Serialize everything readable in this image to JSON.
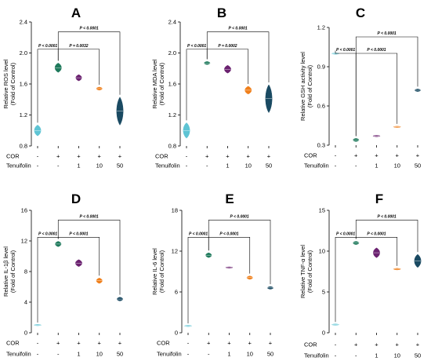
{
  "treatment_rows": {
    "row1_label": "COR",
    "row2_label": "Tenuifolin",
    "cor": [
      "-",
      "+",
      "+",
      "+",
      "+"
    ],
    "tenuifolin": [
      "-",
      "-",
      "1",
      "10",
      "50"
    ]
  },
  "colors": [
    "#5ec4d4",
    "#1f7a5c",
    "#6b2270",
    "#f07f1a",
    "#1a4a62"
  ],
  "chart_data": [
    {
      "panel": "A",
      "type": "violin",
      "ylabel_line1": "Relative ROS level",
      "ylabel_line2": "(Fold of Control)",
      "ylim": [
        0.8,
        2.4
      ],
      "yticks": [
        "0.8",
        "1.2",
        "1.6",
        "2.0",
        "2.4"
      ],
      "ytick_values": [
        0.8,
        1.2,
        1.6,
        2.0,
        2.4
      ],
      "values": [
        1.0,
        1.81,
        1.68,
        1.54,
        1.25
      ],
      "spread": [
        0.07,
        0.06,
        0.04,
        0.02,
        0.18
      ],
      "comparisons": [
        {
          "from": 0,
          "to": 1,
          "label": "P < 0.0001"
        },
        {
          "from": 1,
          "to": 3,
          "label": "P = 0.0032"
        },
        {
          "from": 1,
          "to": 4,
          "label": "P < 0.0001"
        }
      ]
    },
    {
      "panel": "B",
      "type": "violin",
      "ylabel_line1": "Relative MDA level",
      "ylabel_line2": "(Fold of Control)",
      "ylim": [
        0.8,
        2.4
      ],
      "yticks": [
        "0.8",
        "1.2",
        "1.6",
        "2.0",
        "2.4"
      ],
      "ytick_values": [
        0.8,
        1.2,
        1.6,
        2.0,
        2.4
      ],
      "values": [
        1.0,
        1.87,
        1.79,
        1.52,
        1.41
      ],
      "spread": [
        0.1,
        0.02,
        0.05,
        0.05,
        0.18
      ],
      "comparisons": [
        {
          "from": 0,
          "to": 1,
          "label": "P < 0.0001"
        },
        {
          "from": 1,
          "to": 3,
          "label": "P = 0.0002"
        },
        {
          "from": 1,
          "to": 4,
          "label": "P < 0.0001"
        }
      ]
    },
    {
      "panel": "C",
      "type": "violin",
      "ylabel_line1": "Relative GSH activity level",
      "ylabel_line2": "(Fold of Control)",
      "ylim": [
        0.3,
        1.2
      ],
      "yticks": [
        "0.3",
        "0.6",
        "0.9",
        "1.2"
      ],
      "ytick_values": [
        0.3,
        0.6,
        0.9,
        1.2
      ],
      "values": [
        1.0,
        0.34,
        0.37,
        0.44,
        0.72
      ],
      "spread": [
        0.005,
        0.012,
        0.005,
        0.005,
        0.01
      ],
      "comparisons": [
        {
          "from": 0,
          "to": 1,
          "label": "P < 0.0001"
        },
        {
          "from": 1,
          "to": 3,
          "label": "P < 0.0001"
        },
        {
          "from": 1,
          "to": 4,
          "label": "P < 0.0001"
        }
      ]
    },
    {
      "panel": "D",
      "type": "violin",
      "ylabel_line1": "Relative IL-1β level",
      "ylabel_line2": "(Fold of Control)",
      "ylim": [
        0,
        16
      ],
      "yticks": [
        "0",
        "4",
        "8",
        "12",
        "16"
      ],
      "ytick_values": [
        0,
        4,
        8,
        12,
        16
      ],
      "values": [
        1.0,
        11.6,
        9.1,
        6.8,
        4.4
      ],
      "spread": [
        0.03,
        0.35,
        0.45,
        0.35,
        0.25
      ],
      "comparisons": [
        {
          "from": 0,
          "to": 1,
          "label": "P < 0.0001"
        },
        {
          "from": 1,
          "to": 3,
          "label": "P < 0.0001"
        },
        {
          "from": 1,
          "to": 4,
          "label": "P < 0.0001"
        }
      ]
    },
    {
      "panel": "E",
      "type": "violin",
      "ylabel_line1": "Relative IL-6 level",
      "ylabel_line2": "(Fold of Control)",
      "ylim": [
        0,
        18
      ],
      "yticks": [
        "0",
        "6",
        "12",
        "18"
      ],
      "ytick_values": [
        0,
        6,
        12,
        18
      ],
      "values": [
        1.0,
        11.4,
        9.6,
        8.1,
        6.6
      ],
      "spread": [
        0.03,
        0.35,
        0.05,
        0.25,
        0.2
      ],
      "comparisons": [
        {
          "from": 0,
          "to": 1,
          "label": "P < 0.0001"
        },
        {
          "from": 1,
          "to": 3,
          "label": "P < 0.0001"
        },
        {
          "from": 1,
          "to": 4,
          "label": "P < 0.0001"
        }
      ]
    },
    {
      "panel": "F",
      "type": "violin",
      "ylabel_line1": "Relative TNF-α level",
      "ylabel_line2": "(Fold of Control)",
      "ylim": [
        0,
        15
      ],
      "yticks": [
        "0",
        "5",
        "10",
        "15"
      ],
      "ytick_values": [
        0,
        5,
        10,
        15
      ],
      "values": [
        1.0,
        11.0,
        9.8,
        7.8,
        8.8
      ],
      "spread": [
        0.03,
        0.2,
        0.6,
        0.1,
        0.8
      ],
      "comparisons": [
        {
          "from": 0,
          "to": 1,
          "label": "P < 0.0001"
        },
        {
          "from": 1,
          "to": 3,
          "label": "P < 0.0001"
        },
        {
          "from": 1,
          "to": 4,
          "label": "P < 0.0001"
        }
      ]
    }
  ]
}
